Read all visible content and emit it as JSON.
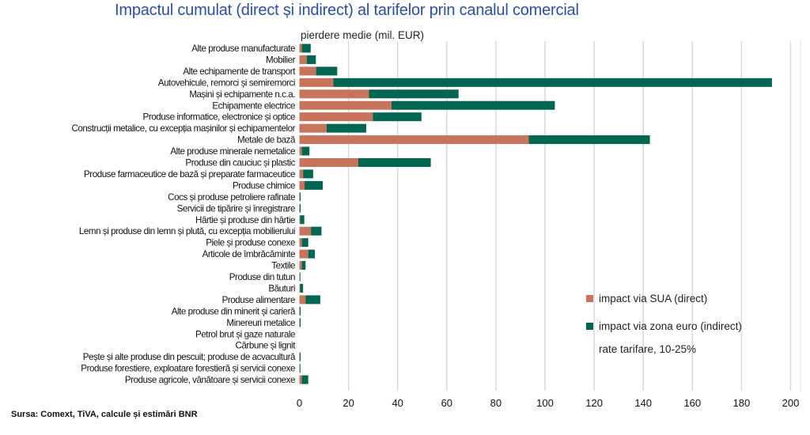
{
  "chart_data": {
    "type": "bar",
    "orientation": "horizontal",
    "stacked": true,
    "title": "Impactul cumulat (direct și indirect) al tarifelor prin canalul comercial",
    "xlabel": "pierdere medie (mil. EUR)",
    "xlim": [
      0,
      200
    ],
    "xticks": [
      0,
      20,
      40,
      60,
      80,
      100,
      120,
      140,
      160,
      180,
      200
    ],
    "grid": "vertical",
    "legend_placement": "bottom-right",
    "note": "rate tarifare, 10-25%",
    "categories": [
      "Alte produse manufacturate",
      "Mobilier",
      "Alte echipamente de transport",
      "Autovehicule, remorci și semiremorci",
      "Mașini și echipamente n.c.a.",
      "Echipamente electrice",
      "Produse informatice, electronice și optice",
      "Construcții metalice, cu excepția mașinilor și echipamentelor",
      "Metale de bază",
      "Alte produse minerale nemetalice",
      "Produse din cauciuc și plastic",
      "Produse farmaceutice de bază și preparate farmaceutice",
      "Produse chimice",
      "Cocs și produse petroliere rafinate",
      "Servicii de tipărire și înregistrare",
      "Hârtie și produse din hârtie",
      "Lemn și produse din lemn și plută, cu excepția mobilierului",
      "Piele și produse conexe",
      "Articole de îmbrăcăminte",
      "Textile",
      "Produse din tutun",
      "Băuturi",
      "Produse alimentare",
      "Alte produse din minerit și carieră",
      "Minereuri metalice",
      "Petrol brut și gaze naturale",
      "Cărbune și lignit",
      "Pește și alte produse din pescuit; produse de acvacultură",
      "Produse forestiere, exploatare forestieră și servicii conexe",
      "Produse agricole, vânătoare și servicii conexe"
    ],
    "series": [
      {
        "name": "impact via SUA (direct)",
        "color": "#C8735C",
        "values": [
          1.0,
          3.0,
          6.8,
          13.8,
          28.3,
          37.5,
          29.9,
          11.1,
          93.4,
          1.0,
          24.0,
          1.5,
          2.1,
          0.1,
          0.1,
          0.3,
          4.7,
          1.0,
          3.6,
          1.0,
          0.1,
          0.3,
          2.5,
          0.1,
          0.1,
          0.0,
          0.0,
          0.1,
          0.1,
          1.0
        ]
      },
      {
        "name": "impact via zona euro (indirect)",
        "color": "#006652",
        "values": [
          3.6,
          3.7,
          8.6,
          178.6,
          36.5,
          66.5,
          19.8,
          16.1,
          49.3,
          3.1,
          29.5,
          4.1,
          7.4,
          0.4,
          0.4,
          1.7,
          4.3,
          2.6,
          2.7,
          1.5,
          0.3,
          1.2,
          6.0,
          0.4,
          0.4,
          0.0,
          0.0,
          0.4,
          0.3,
          2.6
        ]
      }
    ]
  },
  "source": "Sursa: Comext, TiVA, calcule și estimări BNR",
  "colors": {
    "title": "#2B4EA6",
    "grid": "#D9D9D9"
  }
}
